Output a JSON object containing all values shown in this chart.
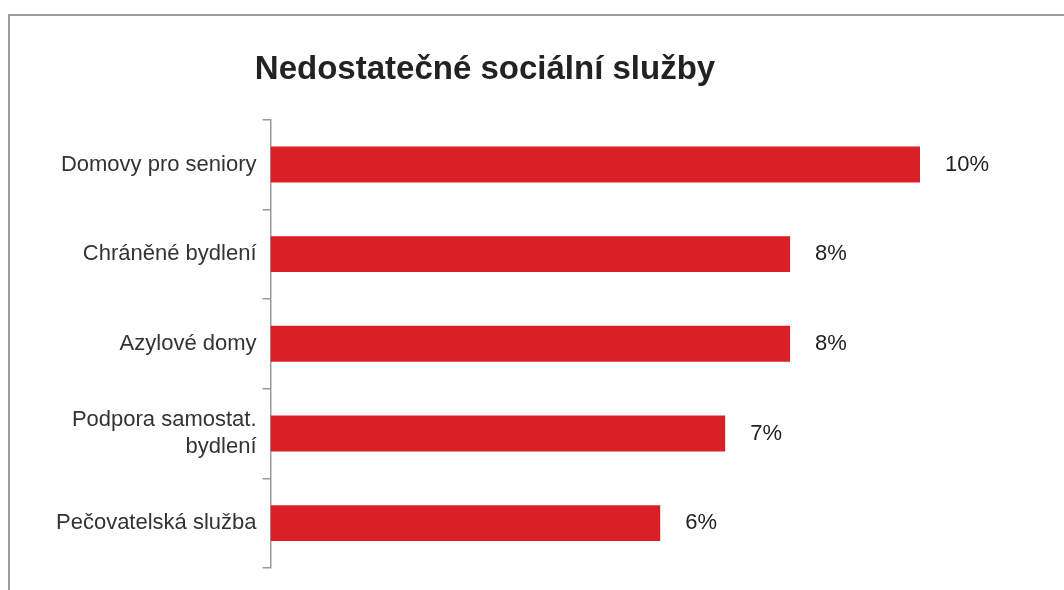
{
  "chart_data": {
    "type": "bar",
    "orientation": "horizontal",
    "title": "Nedostatečné sociální služby",
    "categories": [
      "Domovy pro seniory",
      "Chráněné bydlení",
      "Azylové domy",
      "Podpora samostat. bydlení",
      "Pečovatelská služba"
    ],
    "values": [
      10,
      8,
      8,
      7,
      6
    ],
    "value_labels": [
      "10%",
      "8%",
      "8%",
      "7%",
      "6%"
    ],
    "color": "#d92027",
    "grid": false,
    "legend": false
  }
}
